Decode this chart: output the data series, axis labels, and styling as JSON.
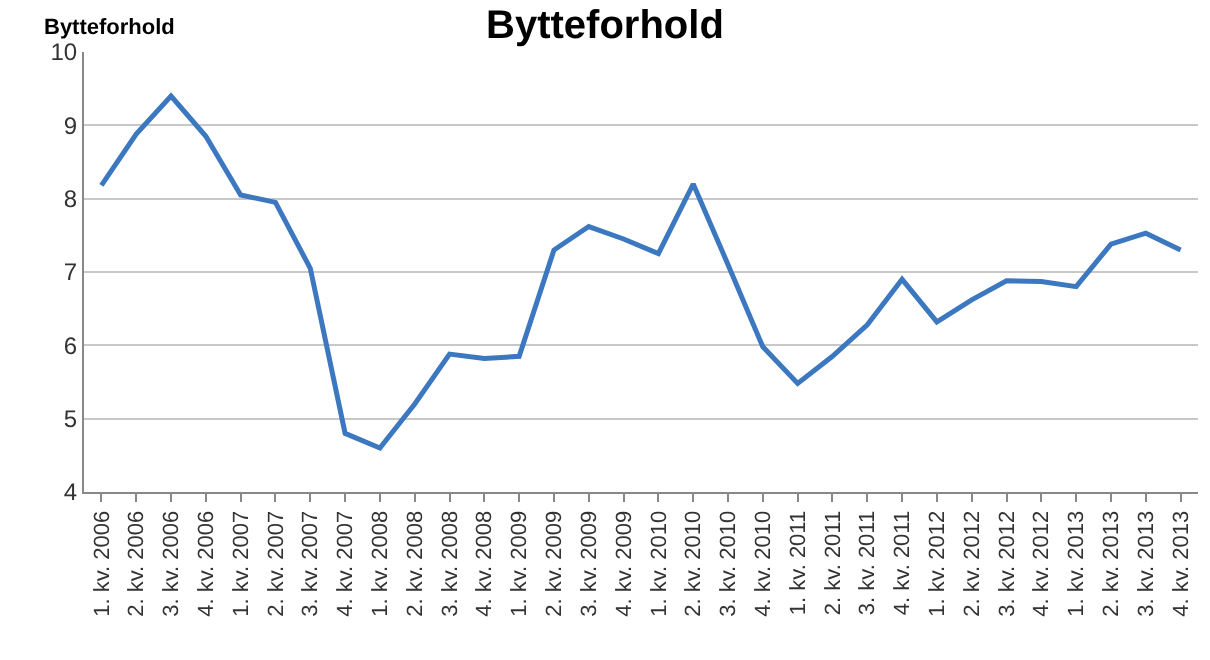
{
  "chart_data": {
    "type": "line",
    "title": "Bytteforhold",
    "ylabel": "Bytteforhold",
    "categories": [
      "1. kv. 2006",
      "2. kv. 2006",
      "3. kv. 2006",
      "4. kv. 2006",
      "1. kv. 2007",
      "2. kv. 2007",
      "3. kv. 2007",
      "4. kv. 2007",
      "1. kv. 2008",
      "2. kv. 2008",
      "3. kv. 2008",
      "4. kv. 2008",
      "1. kv. 2009",
      "2. kv. 2009",
      "3. kv. 2009",
      "4. kv. 2009",
      "1. kv. 2010",
      "2. kv. 2010",
      "3. kv. 2010",
      "4. kv. 2010",
      "1. kv. 2011",
      "2. kv. 2011",
      "3. kv. 2011",
      "4. kv. 2011",
      "1. kv. 2012",
      "2. kv. 2012",
      "3. kv. 2012",
      "4. kv. 2012",
      "1. kv. 2013",
      "2. kv. 2013",
      "3. kv. 2013",
      "4. kv. 2013"
    ],
    "series": [
      {
        "color": "#3c78c0",
        "values": [
          8.18,
          8.88,
          9.4,
          8.85,
          8.05,
          7.95,
          7.05,
          4.8,
          4.6,
          5.2,
          5.88,
          5.82,
          5.85,
          7.3,
          7.62,
          7.45,
          7.25,
          8.2,
          7.1,
          5.98,
          5.48,
          5.85,
          6.28,
          6.9,
          6.32,
          6.62,
          6.88,
          6.87,
          6.8,
          7.38,
          7.53,
          7.3
        ]
      }
    ],
    "ylim": [
      4,
      10
    ],
    "yticks": [
      4,
      5,
      6,
      7,
      8,
      9,
      10
    ],
    "grid": "y",
    "marker": "none",
    "line_style": "solid"
  }
}
